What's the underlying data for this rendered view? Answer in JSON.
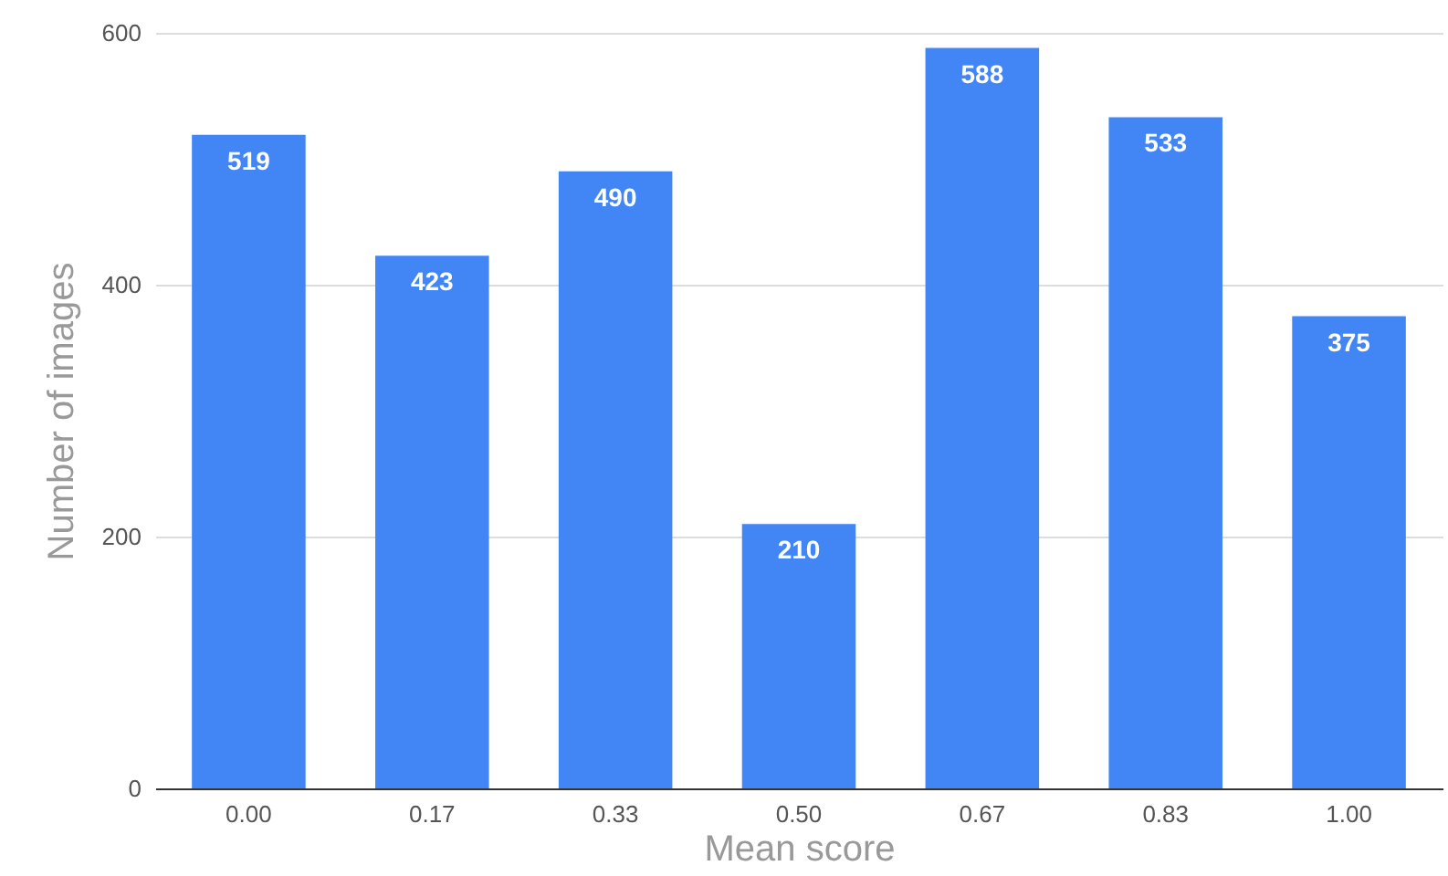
{
  "chart_data": {
    "type": "bar",
    "xlabel": "Mean score",
    "ylabel": "Number of images",
    "categories": [
      "0.00",
      "0.17",
      "0.33",
      "0.50",
      "0.67",
      "0.83",
      "1.00"
    ],
    "values": [
      519,
      423,
      490,
      210,
      588,
      533,
      375
    ],
    "color": "#4285f4",
    "ylim": [
      0,
      600
    ],
    "yticks": [
      0,
      200,
      400,
      600
    ],
    "grid": "y",
    "data_labels": true
  }
}
